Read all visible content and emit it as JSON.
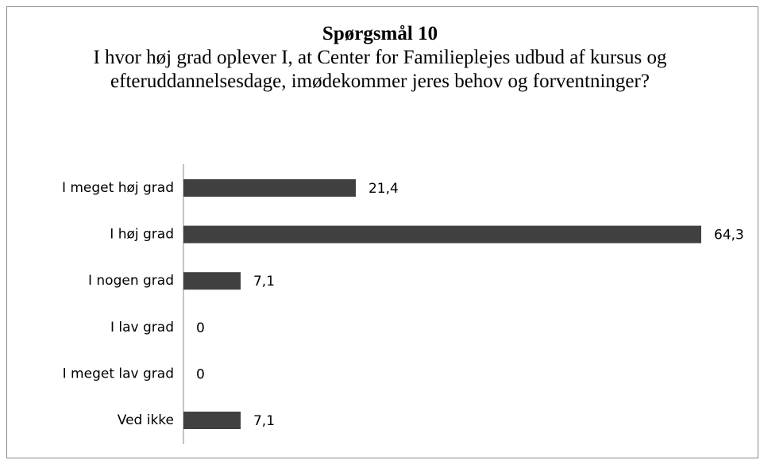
{
  "chart_data": {
    "type": "bar",
    "orientation": "horizontal",
    "title": "Spørgsmål 10",
    "subtitle": "I hvor høj grad oplever I, at Center for Familieplejes udbud af kursus og efteruddannelsesdage, imødekommer jeres behov og forventninger?",
    "categories": [
      "I meget høj grad",
      "I høj grad",
      "I nogen grad",
      "I lav grad",
      "I meget lav grad",
      "Ved ikke"
    ],
    "values": [
      21.4,
      64.3,
      7.1,
      0,
      0,
      7.1
    ],
    "value_labels": [
      "21,4",
      "64,3",
      "7,1",
      "0",
      "0",
      "7,1"
    ],
    "color": "#404040"
  }
}
